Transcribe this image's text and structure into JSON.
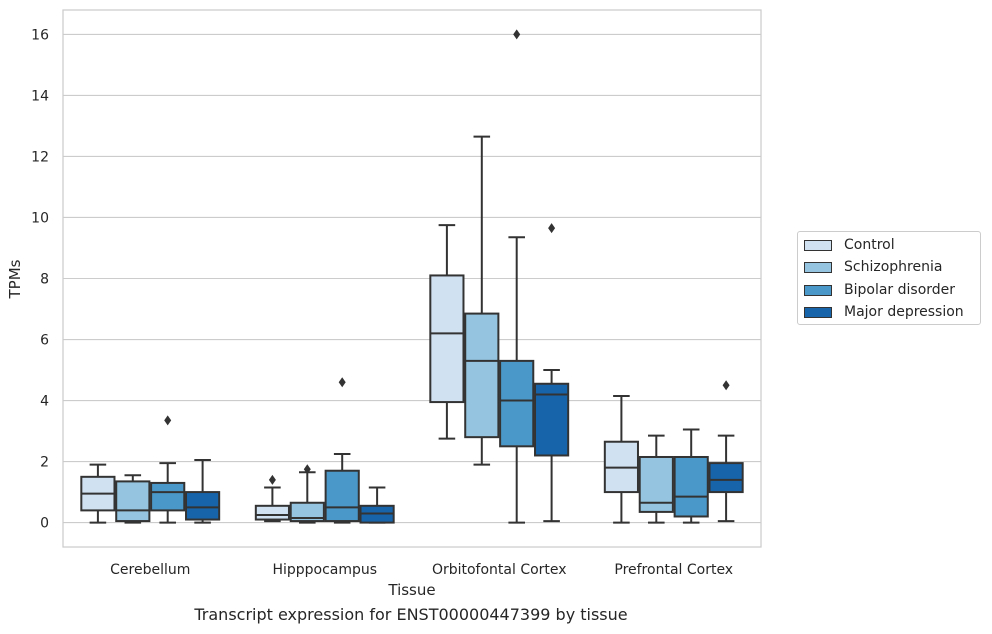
{
  "chart_data": {
    "type": "box",
    "title": "",
    "caption": "Transcript expression for ENST00000447399 by tissue",
    "xlabel": "Tissue",
    "ylabel": "TPMs",
    "ylim": [
      -0.8,
      16.8
    ],
    "yticks": [
      0,
      2,
      4,
      6,
      8,
      10,
      12,
      14,
      16
    ],
    "grid": "horizontal",
    "legend_position": "right",
    "categories": [
      "Cerebellum",
      "Hipppocampus",
      "Orbitofontal Cortex",
      "Prefrontal Cortex"
    ],
    "series": [
      {
        "name": "Control",
        "color": "#d0e1f2",
        "boxes": [
          {
            "whislo": 0.0,
            "q1": 0.4,
            "med": 0.95,
            "q3": 1.5,
            "whishi": 1.9,
            "fliers": []
          },
          {
            "whislo": 0.05,
            "q1": 0.1,
            "med": 0.25,
            "q3": 0.55,
            "whishi": 1.15,
            "fliers": [
              1.4
            ]
          },
          {
            "whislo": 2.75,
            "q1": 3.95,
            "med": 6.2,
            "q3": 8.1,
            "whishi": 9.75,
            "fliers": []
          },
          {
            "whislo": 0.0,
            "q1": 1.0,
            "med": 1.8,
            "q3": 2.65,
            "whishi": 4.15,
            "fliers": []
          }
        ]
      },
      {
        "name": "Schizophrenia",
        "color": "#94c4df",
        "boxes": [
          {
            "whislo": 0.0,
            "q1": 0.05,
            "med": 0.4,
            "q3": 1.35,
            "whishi": 1.55,
            "fliers": []
          },
          {
            "whislo": 0.0,
            "q1": 0.05,
            "med": 0.15,
            "q3": 0.65,
            "whishi": 1.65,
            "fliers": [
              1.75
            ]
          },
          {
            "whislo": 1.9,
            "q1": 2.8,
            "med": 5.3,
            "q3": 6.85,
            "whishi": 12.65,
            "fliers": []
          },
          {
            "whislo": 0.0,
            "q1": 0.35,
            "med": 0.65,
            "q3": 2.15,
            "whishi": 2.85,
            "fliers": []
          }
        ]
      },
      {
        "name": "Bipolar disorder",
        "color": "#4a98c9",
        "boxes": [
          {
            "whislo": 0.0,
            "q1": 0.4,
            "med": 1.0,
            "q3": 1.3,
            "whishi": 1.95,
            "fliers": [
              3.35
            ]
          },
          {
            "whislo": 0.0,
            "q1": 0.05,
            "med": 0.5,
            "q3": 1.7,
            "whishi": 2.25,
            "fliers": [
              4.6
            ]
          },
          {
            "whislo": 0.0,
            "q1": 2.5,
            "med": 4.0,
            "q3": 5.3,
            "whishi": 9.35,
            "fliers": [
              16.0
            ]
          },
          {
            "whislo": 0.0,
            "q1": 0.2,
            "med": 0.85,
            "q3": 2.15,
            "whishi": 3.05,
            "fliers": []
          }
        ]
      },
      {
        "name": "Major depression",
        "color": "#1764ab",
        "boxes": [
          {
            "whislo": 0.0,
            "q1": 0.1,
            "med": 0.5,
            "q3": 1.0,
            "whishi": 2.05,
            "fliers": []
          },
          {
            "whislo": 0.0,
            "q1": 0.0,
            "med": 0.3,
            "q3": 0.55,
            "whishi": 1.15,
            "fliers": []
          },
          {
            "whislo": 0.05,
            "q1": 2.2,
            "med": 4.2,
            "q3": 4.55,
            "whishi": 5.0,
            "fliers": [
              9.65
            ]
          },
          {
            "whislo": 0.05,
            "q1": 1.0,
            "med": 1.4,
            "q3": 1.95,
            "whishi": 2.85,
            "fliers": [
              4.5
            ]
          }
        ]
      }
    ]
  }
}
